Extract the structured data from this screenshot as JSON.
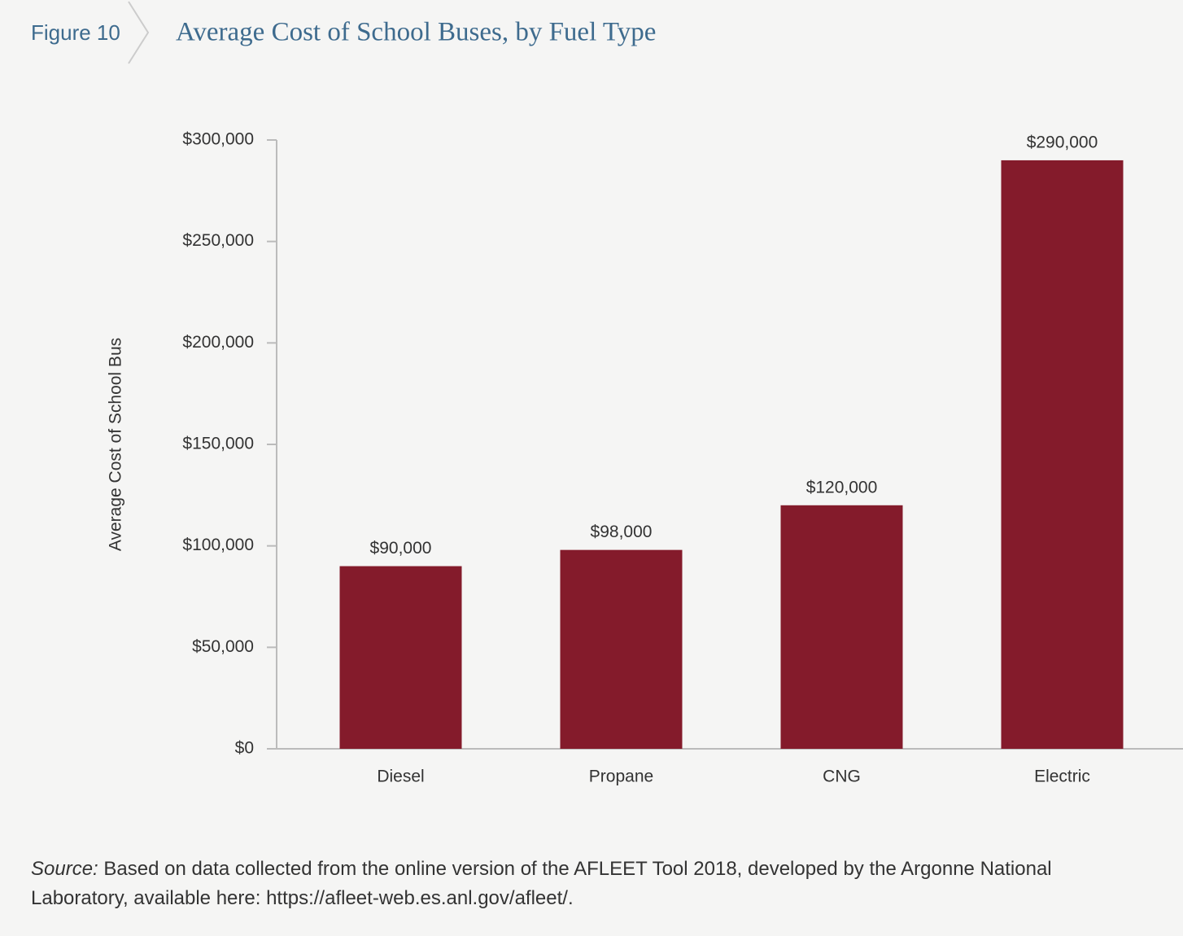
{
  "figure_label": "Figure 10",
  "chart_data": {
    "type": "bar",
    "title": "Average Cost of School Buses, by Fuel Type",
    "y_label": "Average Cost of School Bus",
    "categories": [
      "Diesel",
      "Propane",
      "CNG",
      "Electric"
    ],
    "values": [
      90000,
      98000,
      120000,
      290000
    ],
    "value_labels": [
      "$90,000",
      "$98,000",
      "$120,000",
      "$290,000"
    ],
    "color": "#841b2b",
    "ylim": [
      0,
      300000
    ],
    "yticks": [
      {
        "value": 0,
        "label": "$0"
      },
      {
        "value": 50000,
        "label": "$50,000"
      },
      {
        "value": 100000,
        "label": "$100,000"
      },
      {
        "value": 150000,
        "label": "$150,000"
      },
      {
        "value": 200000,
        "label": "$200,000"
      },
      {
        "value": 250000,
        "label": "$250,000"
      },
      {
        "value": 300000,
        "label": "$300,000"
      }
    ],
    "grid": false
  },
  "source": {
    "label": "Source:",
    "text": "Based on data collected from the online version of the AFLEET Tool 2018, developed by the Argonne National Laboratory, available here: https://afleet-web.es.anl.gov/afleet/."
  }
}
